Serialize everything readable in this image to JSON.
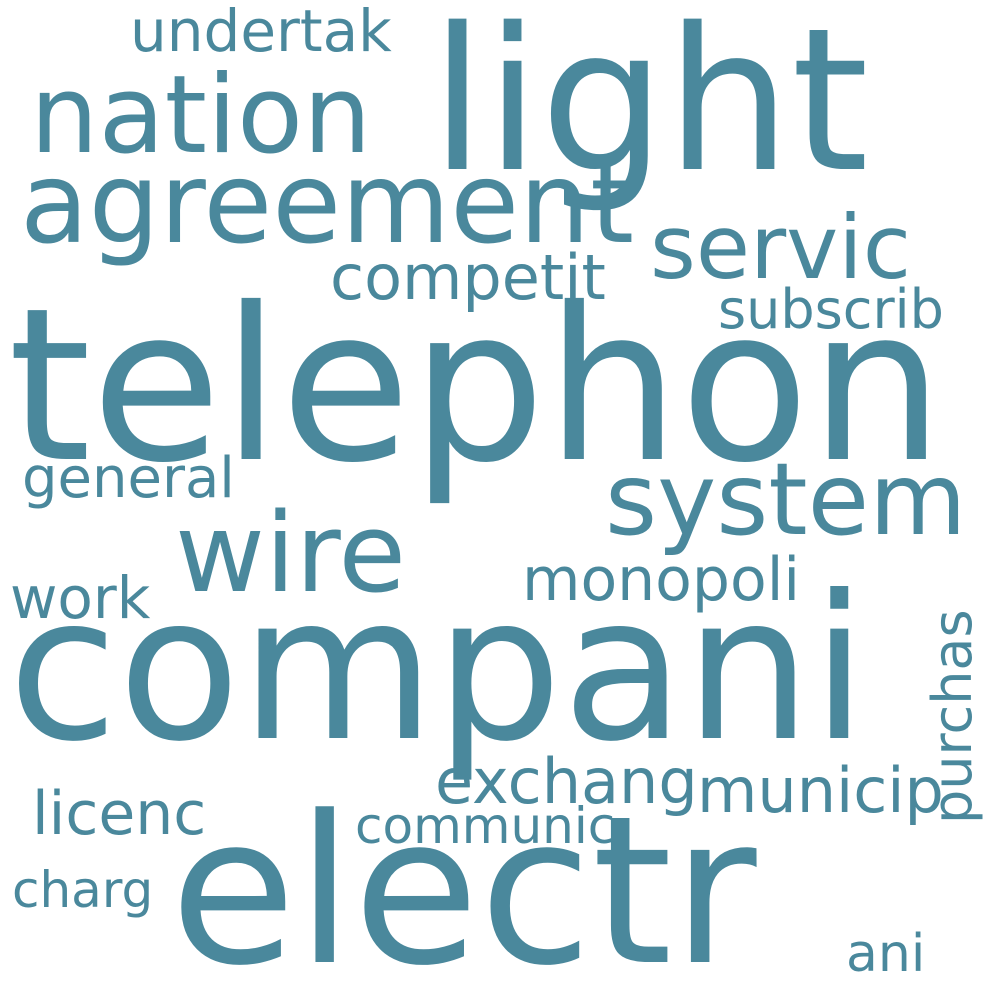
{
  "color": "#4a889c",
  "background": "#ffffff",
  "words": {
    "telephon": "telephon",
    "compani": "compani",
    "electr": "electr",
    "light": "light",
    "nation": "nation",
    "agreement": "agreement",
    "servic": "servic",
    "system": "system",
    "wire": "wire",
    "competit": "competit",
    "subscrib": "subscrib",
    "undertak": "undertak",
    "general": "general",
    "monopoli": "monopoli",
    "work": "work",
    "purchas": "purchas",
    "exchang": "exchang",
    "municip": "municip",
    "licenc": "licenc",
    "communic": "communic",
    "charg": "charg",
    "ani": "ani"
  }
}
